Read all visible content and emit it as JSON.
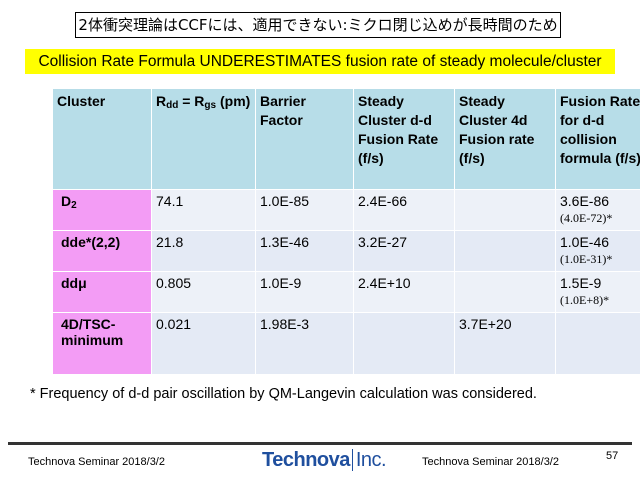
{
  "header": {
    "title": "2体衝突理論はCCFには、適用できない:ミクロ閉じ込めが長時間のため",
    "banner": "Collision Rate Formula UNDERESTIMATES fusion rate of steady molecule/cluster"
  },
  "table": {
    "columns": [
      [
        "Cluster"
      ],
      [
        "R",
        {
          "sub": "dd"
        },
        " = R",
        {
          "sub": "gs"
        },
        " (pm)"
      ],
      [
        "Barrier Factor"
      ],
      [
        "Steady Cluster d-d Fusion Rate (f/s)"
      ],
      [
        "Steady Cluster 4d Fusion rate (f/s)"
      ],
      [
        "Fusion Rate for d-d collision formula (f/s)"
      ]
    ],
    "rows": [
      [
        [
          "D",
          {
            "sub": "2"
          }
        ],
        [
          "74.1"
        ],
        [
          "1.0E-85"
        ],
        [
          "2.4E-66"
        ],
        [],
        [
          "3.6E-86",
          {
            "note": "(4.0E-72)*"
          }
        ]
      ],
      [
        [
          "dde*(2,2)"
        ],
        [
          "21.8"
        ],
        [
          "1.3E-46"
        ],
        [
          "3.2E-27"
        ],
        [],
        [
          "1.0E-46",
          {
            "note": "(1.0E-31)*"
          }
        ]
      ],
      [
        [
          "ddμ"
        ],
        [
          "0.805"
        ],
        [
          "1.0E-9"
        ],
        [
          "2.4E+10"
        ],
        [],
        [
          "1.5E-9",
          {
            "note": "(1.0E+8)*"
          }
        ]
      ],
      [
        [
          "4D/TSC-minimum"
        ],
        [
          "0.021"
        ],
        [
          "1.98E-3"
        ],
        [],
        [
          "3.7E+20"
        ],
        []
      ]
    ]
  },
  "footnote": "* Frequency of d-d pair oscillation by QM-Langevin calculation was considered.",
  "footer": {
    "left": "Technova Seminar 2018/3/2",
    "logo": "Technova",
    "logo_suffix": "Inc.",
    "right": "Technova Seminar 2018/3/2",
    "page": "57"
  }
}
